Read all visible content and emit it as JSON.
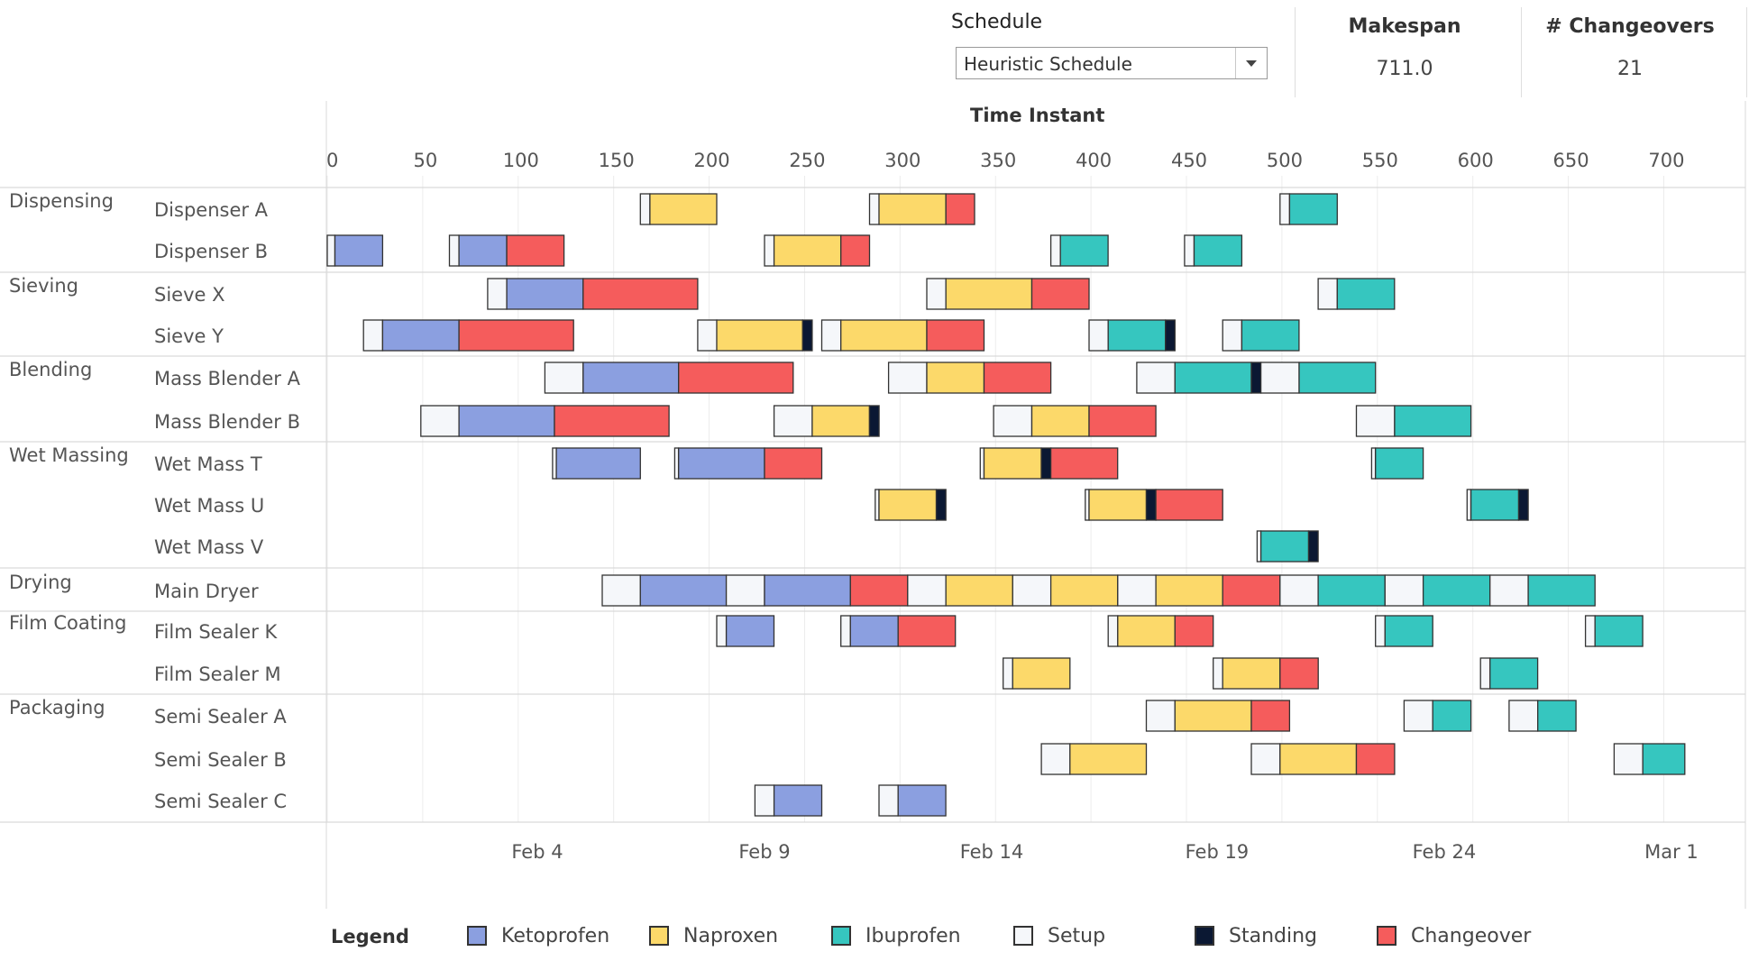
{
  "header": {
    "schedule_label": "Schedule",
    "schedule_value": "Heuristic Schedule",
    "makespan_label": "Makespan",
    "makespan_value": "711.0",
    "changeovers_label": "# Changeovers",
    "changeovers_value": "21"
  },
  "colors": {
    "Ketoprofen": "#8b9fe0",
    "Naproxen": "#fcd96a",
    "Ibuprofen": "#36c6bf",
    "Setup": "#f5f7fa",
    "Standing": "#0b1833",
    "Changeover": "#f55c5c",
    "border": "#333333",
    "grid": "#d9d9d9"
  },
  "legend": {
    "title": "Legend",
    "items": [
      "Ketoprofen",
      "Naproxen",
      "Ibuprofen",
      "Setup",
      "Standing",
      "Changeover"
    ]
  },
  "chart_data": {
    "type": "gantt",
    "title": "",
    "xlabel": "Time Instant",
    "x_ticks": [
      0,
      50,
      100,
      150,
      200,
      250,
      300,
      350,
      400,
      450,
      500,
      550,
      600,
      650,
      700
    ],
    "date_ticks": [
      {
        "label": "Feb 4",
        "x": 110
      },
      {
        "label": "Feb 9",
        "x": 229
      },
      {
        "label": "Feb 14",
        "x": 348
      },
      {
        "label": "Feb 19",
        "x": 466
      },
      {
        "label": "Feb 24",
        "x": 585
      },
      {
        "label": "Mar 1",
        "x": 704
      }
    ],
    "groups": [
      {
        "name": "Dispensing",
        "rows": [
          "Dispenser A",
          "Dispenser B"
        ]
      },
      {
        "name": "Sieving",
        "rows": [
          "Sieve X",
          "Sieve Y"
        ]
      },
      {
        "name": "Blending",
        "rows": [
          "Mass Blender A",
          "Mass Blender B"
        ]
      },
      {
        "name": "Wet Massing",
        "rows": [
          "Wet Mass T",
          "Wet Mass U",
          "Wet Mass V"
        ]
      },
      {
        "name": "Drying",
        "rows": [
          "Main Dryer"
        ]
      },
      {
        "name": "Film Coating",
        "rows": [
          "Film Sealer K",
          "Film Sealer M"
        ]
      },
      {
        "name": "Packaging",
        "rows": [
          "Semi Sealer A",
          "Semi Sealer B",
          "Semi Sealer C"
        ]
      }
    ],
    "tasks": [
      {
        "row": "Dispenser A",
        "type": "Setup",
        "start": 164,
        "end": 169
      },
      {
        "row": "Dispenser A",
        "type": "Naproxen",
        "start": 169,
        "end": 204
      },
      {
        "row": "Dispenser A",
        "type": "Setup",
        "start": 284,
        "end": 289
      },
      {
        "row": "Dispenser A",
        "type": "Naproxen",
        "start": 289,
        "end": 324
      },
      {
        "row": "Dispenser A",
        "type": "Changeover",
        "start": 324,
        "end": 339
      },
      {
        "row": "Dispenser A",
        "type": "Setup",
        "start": 499,
        "end": 504
      },
      {
        "row": "Dispenser A",
        "type": "Ibuprofen",
        "start": 504,
        "end": 529
      },
      {
        "row": "Dispenser B",
        "type": "Setup",
        "start": 0,
        "end": 4
      },
      {
        "row": "Dispenser B",
        "type": "Ketoprofen",
        "start": 4,
        "end": 29
      },
      {
        "row": "Dispenser B",
        "type": "Setup",
        "start": 64,
        "end": 69
      },
      {
        "row": "Dispenser B",
        "type": "Ketoprofen",
        "start": 69,
        "end": 94
      },
      {
        "row": "Dispenser B",
        "type": "Changeover",
        "start": 94,
        "end": 124
      },
      {
        "row": "Dispenser B",
        "type": "Setup",
        "start": 229,
        "end": 234
      },
      {
        "row": "Dispenser B",
        "type": "Naproxen",
        "start": 234,
        "end": 269
      },
      {
        "row": "Dispenser B",
        "type": "Changeover",
        "start": 269,
        "end": 284
      },
      {
        "row": "Dispenser B",
        "type": "Setup",
        "start": 379,
        "end": 384
      },
      {
        "row": "Dispenser B",
        "type": "Ibuprofen",
        "start": 384,
        "end": 409
      },
      {
        "row": "Dispenser B",
        "type": "Setup",
        "start": 449,
        "end": 454
      },
      {
        "row": "Dispenser B",
        "type": "Ibuprofen",
        "start": 454,
        "end": 479
      },
      {
        "row": "Sieve X",
        "type": "Setup",
        "start": 84,
        "end": 94
      },
      {
        "row": "Sieve X",
        "type": "Ketoprofen",
        "start": 94,
        "end": 134
      },
      {
        "row": "Sieve X",
        "type": "Changeover",
        "start": 134,
        "end": 194
      },
      {
        "row": "Sieve X",
        "type": "Setup",
        "start": 314,
        "end": 324
      },
      {
        "row": "Sieve X",
        "type": "Naproxen",
        "start": 324,
        "end": 369
      },
      {
        "row": "Sieve X",
        "type": "Changeover",
        "start": 369,
        "end": 399
      },
      {
        "row": "Sieve X",
        "type": "Setup",
        "start": 519,
        "end": 529
      },
      {
        "row": "Sieve X",
        "type": "Ibuprofen",
        "start": 529,
        "end": 559
      },
      {
        "row": "Sieve Y",
        "type": "Setup",
        "start": 19,
        "end": 29
      },
      {
        "row": "Sieve Y",
        "type": "Ketoprofen",
        "start": 29,
        "end": 69
      },
      {
        "row": "Sieve Y",
        "type": "Changeover",
        "start": 69,
        "end": 129
      },
      {
        "row": "Sieve Y",
        "type": "Setup",
        "start": 194,
        "end": 204
      },
      {
        "row": "Sieve Y",
        "type": "Naproxen",
        "start": 204,
        "end": 249
      },
      {
        "row": "Sieve Y",
        "type": "Standing",
        "start": 249,
        "end": 254
      },
      {
        "row": "Sieve Y",
        "type": "Setup",
        "start": 259,
        "end": 269
      },
      {
        "row": "Sieve Y",
        "type": "Naproxen",
        "start": 269,
        "end": 314
      },
      {
        "row": "Sieve Y",
        "type": "Changeover",
        "start": 314,
        "end": 344
      },
      {
        "row": "Sieve Y",
        "type": "Setup",
        "start": 399,
        "end": 409
      },
      {
        "row": "Sieve Y",
        "type": "Ibuprofen",
        "start": 409,
        "end": 439
      },
      {
        "row": "Sieve Y",
        "type": "Standing",
        "start": 439,
        "end": 444
      },
      {
        "row": "Sieve Y",
        "type": "Setup",
        "start": 469,
        "end": 479
      },
      {
        "row": "Sieve Y",
        "type": "Ibuprofen",
        "start": 479,
        "end": 509
      },
      {
        "row": "Mass Blender A",
        "type": "Setup",
        "start": 114,
        "end": 134
      },
      {
        "row": "Mass Blender A",
        "type": "Ketoprofen",
        "start": 134,
        "end": 184
      },
      {
        "row": "Mass Blender A",
        "type": "Changeover",
        "start": 184,
        "end": 244
      },
      {
        "row": "Mass Blender A",
        "type": "Setup",
        "start": 294,
        "end": 314
      },
      {
        "row": "Mass Blender A",
        "type": "Naproxen",
        "start": 314,
        "end": 344
      },
      {
        "row": "Mass Blender A",
        "type": "Changeover",
        "start": 344,
        "end": 379
      },
      {
        "row": "Mass Blender A",
        "type": "Setup",
        "start": 424,
        "end": 444
      },
      {
        "row": "Mass Blender A",
        "type": "Ibuprofen",
        "start": 444,
        "end": 484
      },
      {
        "row": "Mass Blender A",
        "type": "Standing",
        "start": 484,
        "end": 489
      },
      {
        "row": "Mass Blender A",
        "type": "Setup",
        "start": 489,
        "end": 509
      },
      {
        "row": "Mass Blender A",
        "type": "Ibuprofen",
        "start": 509,
        "end": 549
      },
      {
        "row": "Mass Blender B",
        "type": "Setup",
        "start": 49,
        "end": 69
      },
      {
        "row": "Mass Blender B",
        "type": "Ketoprofen",
        "start": 69,
        "end": 119
      },
      {
        "row": "Mass Blender B",
        "type": "Changeover",
        "start": 119,
        "end": 179
      },
      {
        "row": "Mass Blender B",
        "type": "Setup",
        "start": 234,
        "end": 254
      },
      {
        "row": "Mass Blender B",
        "type": "Naproxen",
        "start": 254,
        "end": 284
      },
      {
        "row": "Mass Blender B",
        "type": "Standing",
        "start": 284,
        "end": 289
      },
      {
        "row": "Mass Blender B",
        "type": "Setup",
        "start": 349,
        "end": 369
      },
      {
        "row": "Mass Blender B",
        "type": "Naproxen",
        "start": 369,
        "end": 399
      },
      {
        "row": "Mass Blender B",
        "type": "Changeover",
        "start": 399,
        "end": 434
      },
      {
        "row": "Mass Blender B",
        "type": "Setup",
        "start": 539,
        "end": 559
      },
      {
        "row": "Mass Blender B",
        "type": "Ibuprofen",
        "start": 559,
        "end": 599
      },
      {
        "row": "Wet Mass T",
        "type": "Setup",
        "start": 118,
        "end": 120
      },
      {
        "row": "Wet Mass T",
        "type": "Ketoprofen",
        "start": 120,
        "end": 164
      },
      {
        "row": "Wet Mass T",
        "type": "Setup",
        "start": 182,
        "end": 184
      },
      {
        "row": "Wet Mass T",
        "type": "Ketoprofen",
        "start": 184,
        "end": 229
      },
      {
        "row": "Wet Mass T",
        "type": "Changeover",
        "start": 229,
        "end": 259
      },
      {
        "row": "Wet Mass T",
        "type": "Setup",
        "start": 342,
        "end": 344
      },
      {
        "row": "Wet Mass T",
        "type": "Naproxen",
        "start": 344,
        "end": 374
      },
      {
        "row": "Wet Mass T",
        "type": "Standing",
        "start": 374,
        "end": 379
      },
      {
        "row": "Wet Mass T",
        "type": "Changeover",
        "start": 379,
        "end": 414
      },
      {
        "row": "Wet Mass T",
        "type": "Setup",
        "start": 547,
        "end": 549
      },
      {
        "row": "Wet Mass T",
        "type": "Ibuprofen",
        "start": 549,
        "end": 574
      },
      {
        "row": "Wet Mass U",
        "type": "Setup",
        "start": 287,
        "end": 289
      },
      {
        "row": "Wet Mass U",
        "type": "Naproxen",
        "start": 289,
        "end": 319
      },
      {
        "row": "Wet Mass U",
        "type": "Standing",
        "start": 319,
        "end": 324
      },
      {
        "row": "Wet Mass U",
        "type": "Setup",
        "start": 397,
        "end": 399
      },
      {
        "row": "Wet Mass U",
        "type": "Naproxen",
        "start": 399,
        "end": 429
      },
      {
        "row": "Wet Mass U",
        "type": "Standing",
        "start": 429,
        "end": 434
      },
      {
        "row": "Wet Mass U",
        "type": "Changeover",
        "start": 434,
        "end": 469
      },
      {
        "row": "Wet Mass U",
        "type": "Setup",
        "start": 597,
        "end": 599
      },
      {
        "row": "Wet Mass U",
        "type": "Ibuprofen",
        "start": 599,
        "end": 624
      },
      {
        "row": "Wet Mass U",
        "type": "Standing",
        "start": 624,
        "end": 629
      },
      {
        "row": "Wet Mass V",
        "type": "Setup",
        "start": 487,
        "end": 489
      },
      {
        "row": "Wet Mass V",
        "type": "Ibuprofen",
        "start": 489,
        "end": 514
      },
      {
        "row": "Wet Mass V",
        "type": "Standing",
        "start": 514,
        "end": 519
      },
      {
        "row": "Main Dryer",
        "type": "Setup",
        "start": 144,
        "end": 164
      },
      {
        "row": "Main Dryer",
        "type": "Ketoprofen",
        "start": 164,
        "end": 209
      },
      {
        "row": "Main Dryer",
        "type": "Setup",
        "start": 209,
        "end": 229
      },
      {
        "row": "Main Dryer",
        "type": "Ketoprofen",
        "start": 229,
        "end": 274
      },
      {
        "row": "Main Dryer",
        "type": "Changeover",
        "start": 274,
        "end": 304
      },
      {
        "row": "Main Dryer",
        "type": "Setup",
        "start": 304,
        "end": 324
      },
      {
        "row": "Main Dryer",
        "type": "Naproxen",
        "start": 324,
        "end": 359
      },
      {
        "row": "Main Dryer",
        "type": "Setup",
        "start": 359,
        "end": 379
      },
      {
        "row": "Main Dryer",
        "type": "Naproxen",
        "start": 379,
        "end": 414
      },
      {
        "row": "Main Dryer",
        "type": "Setup",
        "start": 414,
        "end": 434
      },
      {
        "row": "Main Dryer",
        "type": "Naproxen",
        "start": 434,
        "end": 469
      },
      {
        "row": "Main Dryer",
        "type": "Changeover",
        "start": 469,
        "end": 499
      },
      {
        "row": "Main Dryer",
        "type": "Setup",
        "start": 499,
        "end": 519
      },
      {
        "row": "Main Dryer",
        "type": "Ibuprofen",
        "start": 519,
        "end": 554
      },
      {
        "row": "Main Dryer",
        "type": "Setup",
        "start": 554,
        "end": 574
      },
      {
        "row": "Main Dryer",
        "type": "Ibuprofen",
        "start": 574,
        "end": 609
      },
      {
        "row": "Main Dryer",
        "type": "Setup",
        "start": 609,
        "end": 629
      },
      {
        "row": "Main Dryer",
        "type": "Ibuprofen",
        "start": 629,
        "end": 664
      },
      {
        "row": "Film Sealer K",
        "type": "Setup",
        "start": 204,
        "end": 209
      },
      {
        "row": "Film Sealer K",
        "type": "Ketoprofen",
        "start": 209,
        "end": 234
      },
      {
        "row": "Film Sealer K",
        "type": "Setup",
        "start": 269,
        "end": 274
      },
      {
        "row": "Film Sealer K",
        "type": "Ketoprofen",
        "start": 274,
        "end": 299
      },
      {
        "row": "Film Sealer K",
        "type": "Changeover",
        "start": 299,
        "end": 329
      },
      {
        "row": "Film Sealer K",
        "type": "Setup",
        "start": 409,
        "end": 414
      },
      {
        "row": "Film Sealer K",
        "type": "Naproxen",
        "start": 414,
        "end": 444
      },
      {
        "row": "Film Sealer K",
        "type": "Changeover",
        "start": 444,
        "end": 464
      },
      {
        "row": "Film Sealer K",
        "type": "Setup",
        "start": 549,
        "end": 554
      },
      {
        "row": "Film Sealer K",
        "type": "Ibuprofen",
        "start": 554,
        "end": 579
      },
      {
        "row": "Film Sealer K",
        "type": "Setup",
        "start": 659,
        "end": 664
      },
      {
        "row": "Film Sealer K",
        "type": "Ibuprofen",
        "start": 664,
        "end": 689
      },
      {
        "row": "Film Sealer M",
        "type": "Setup",
        "start": 354,
        "end": 359
      },
      {
        "row": "Film Sealer M",
        "type": "Naproxen",
        "start": 359,
        "end": 389
      },
      {
        "row": "Film Sealer M",
        "type": "Setup",
        "start": 464,
        "end": 469
      },
      {
        "row": "Film Sealer M",
        "type": "Naproxen",
        "start": 469,
        "end": 499
      },
      {
        "row": "Film Sealer M",
        "type": "Changeover",
        "start": 499,
        "end": 519
      },
      {
        "row": "Film Sealer M",
        "type": "Setup",
        "start": 604,
        "end": 609
      },
      {
        "row": "Film Sealer M",
        "type": "Ibuprofen",
        "start": 609,
        "end": 634
      },
      {
        "row": "Semi Sealer A",
        "type": "Setup",
        "start": 429,
        "end": 444
      },
      {
        "row": "Semi Sealer A",
        "type": "Naproxen",
        "start": 444,
        "end": 484
      },
      {
        "row": "Semi Sealer A",
        "type": "Changeover",
        "start": 484,
        "end": 504
      },
      {
        "row": "Semi Sealer A",
        "type": "Setup",
        "start": 564,
        "end": 579
      },
      {
        "row": "Semi Sealer A",
        "type": "Ibuprofen",
        "start": 579,
        "end": 599
      },
      {
        "row": "Semi Sealer A",
        "type": "Setup",
        "start": 619,
        "end": 634
      },
      {
        "row": "Semi Sealer A",
        "type": "Ibuprofen",
        "start": 634,
        "end": 654
      },
      {
        "row": "Semi Sealer B",
        "type": "Setup",
        "start": 374,
        "end": 389
      },
      {
        "row": "Semi Sealer B",
        "type": "Naproxen",
        "start": 389,
        "end": 429
      },
      {
        "row": "Semi Sealer B",
        "type": "Setup",
        "start": 484,
        "end": 499
      },
      {
        "row": "Semi Sealer B",
        "type": "Naproxen",
        "start": 499,
        "end": 539
      },
      {
        "row": "Semi Sealer B",
        "type": "Changeover",
        "start": 539,
        "end": 559
      },
      {
        "row": "Semi Sealer B",
        "type": "Setup",
        "start": 674,
        "end": 689
      },
      {
        "row": "Semi Sealer B",
        "type": "Ibuprofen",
        "start": 689,
        "end": 711
      },
      {
        "row": "Semi Sealer C",
        "type": "Setup",
        "start": 224,
        "end": 234
      },
      {
        "row": "Semi Sealer C",
        "type": "Ketoprofen",
        "start": 234,
        "end": 259
      },
      {
        "row": "Semi Sealer C",
        "type": "Setup",
        "start": 289,
        "end": 299
      },
      {
        "row": "Semi Sealer C",
        "type": "Ketoprofen",
        "start": 299,
        "end": 324
      }
    ]
  }
}
